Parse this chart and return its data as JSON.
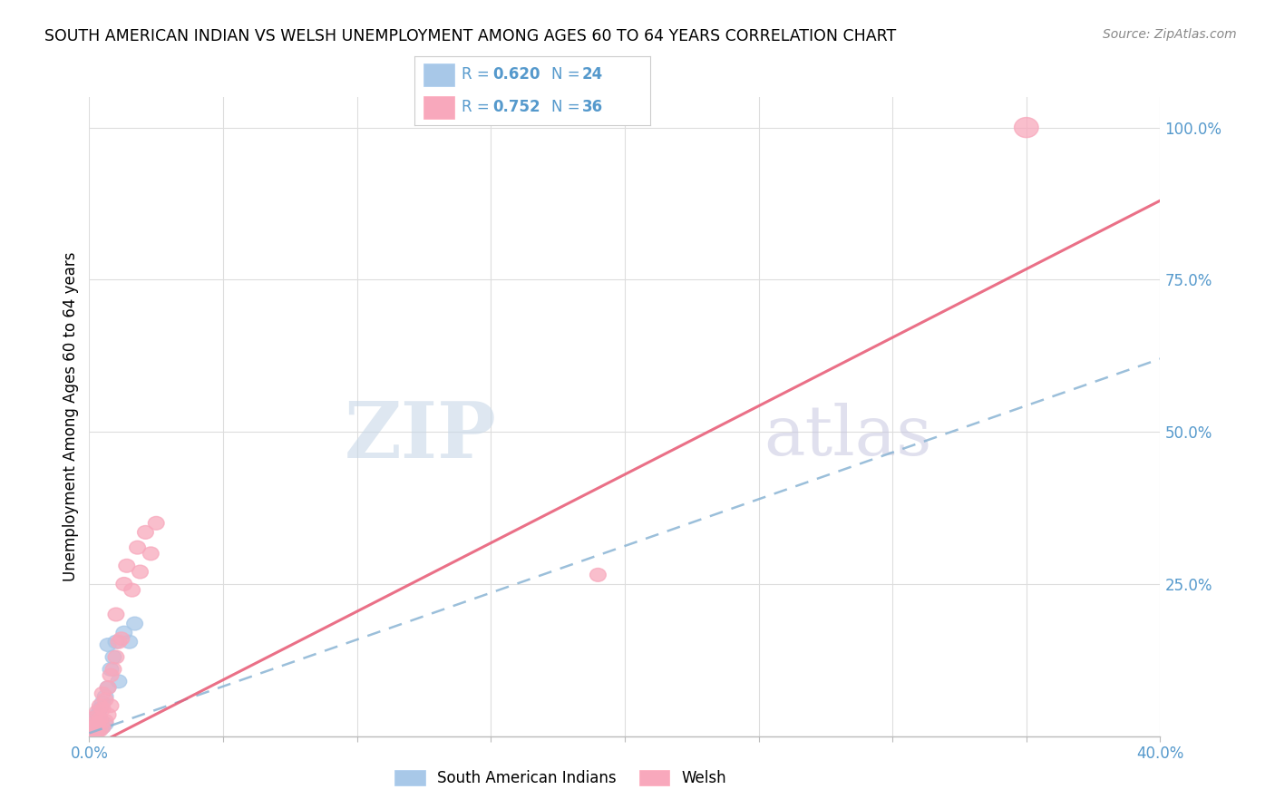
{
  "title": "SOUTH AMERICAN INDIAN VS WELSH UNEMPLOYMENT AMONG AGES 60 TO 64 YEARS CORRELATION CHART",
  "source": "Source: ZipAtlas.com",
  "ylabel": "Unemployment Among Ages 60 to 64 years",
  "xlim": [
    0.0,
    0.4
  ],
  "ylim": [
    0.0,
    1.05
  ],
  "yticks": [
    0.0,
    0.25,
    0.5,
    0.75,
    1.0
  ],
  "ytick_labels": [
    "",
    "25.0%",
    "50.0%",
    "75.0%",
    "100.0%"
  ],
  "xticks": [
    0.0,
    0.05,
    0.1,
    0.15,
    0.2,
    0.25,
    0.3,
    0.35,
    0.4
  ],
  "xtick_labels": [
    "0.0%",
    "",
    "",
    "",
    "",
    "",
    "",
    "",
    "40.0%"
  ],
  "sa_r": 0.62,
  "sa_n": 24,
  "welsh_r": 0.752,
  "welsh_n": 36,
  "sa_color": "#a8c8e8",
  "welsh_color": "#f8a8bc",
  "sa_line_color": "#8ab4d4",
  "welsh_line_color": "#e8607a",
  "tick_color": "#5599cc",
  "grid_color": "#dddddd",
  "sa_points_x": [
    0.001,
    0.001,
    0.002,
    0.002,
    0.002,
    0.003,
    0.003,
    0.003,
    0.004,
    0.004,
    0.004,
    0.005,
    0.005,
    0.006,
    0.006,
    0.007,
    0.007,
    0.008,
    0.009,
    0.01,
    0.011,
    0.013,
    0.015,
    0.017
  ],
  "sa_points_y": [
    0.005,
    0.015,
    0.008,
    0.018,
    0.03,
    0.01,
    0.02,
    0.035,
    0.012,
    0.028,
    0.045,
    0.015,
    0.055,
    0.065,
    0.02,
    0.08,
    0.15,
    0.11,
    0.13,
    0.155,
    0.09,
    0.17,
    0.155,
    0.185
  ],
  "welsh_points_x": [
    0.001,
    0.001,
    0.001,
    0.002,
    0.002,
    0.002,
    0.003,
    0.003,
    0.003,
    0.004,
    0.004,
    0.004,
    0.005,
    0.005,
    0.005,
    0.006,
    0.006,
    0.007,
    0.007,
    0.008,
    0.008,
    0.009,
    0.01,
    0.01,
    0.011,
    0.012,
    0.013,
    0.014,
    0.016,
    0.018,
    0.019,
    0.021,
    0.023,
    0.025,
    0.19,
    0.35
  ],
  "welsh_points_y": [
    0.003,
    0.01,
    0.02,
    0.005,
    0.015,
    0.03,
    0.008,
    0.02,
    0.04,
    0.01,
    0.028,
    0.05,
    0.015,
    0.045,
    0.07,
    0.025,
    0.06,
    0.035,
    0.08,
    0.05,
    0.1,
    0.11,
    0.13,
    0.2,
    0.155,
    0.16,
    0.25,
    0.28,
    0.24,
    0.31,
    0.27,
    0.335,
    0.3,
    0.35,
    0.265,
    1.0
  ],
  "sa_line_x0": 0.0,
  "sa_line_y0": 0.005,
  "sa_line_x1": 0.4,
  "sa_line_y1": 0.62,
  "welsh_line_x0": 0.0,
  "welsh_line_y0": -0.02,
  "welsh_line_x1": 0.4,
  "welsh_line_y1": 0.88,
  "watermark_zip_color": "#c8d8e8",
  "watermark_atlas_color": "#c8c8e0"
}
